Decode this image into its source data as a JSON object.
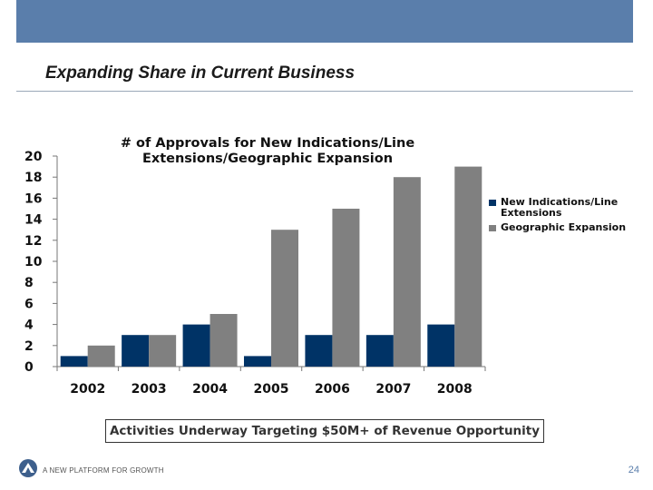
{
  "slide": {
    "title": "Expanding Share in Current Business",
    "callout": "Activities Underway Targeting $50M+ of Revenue Opportunity",
    "footer": "A NEW PLATFORM FOR GROWTH",
    "page_number": "24",
    "header_color": "#5a7eab"
  },
  "chart_data": {
    "type": "bar",
    "title": "# of Approvals for New Indications/Line Extensions/Geographic Expansion",
    "title_lines": [
      "# of Approvals for New Indications/Line",
      "Extensions/Geographic Expansion"
    ],
    "categories": [
      "2002",
      "2003",
      "2004",
      "2005",
      "2006",
      "2007",
      "2008"
    ],
    "series": [
      {
        "name": "New Indications/Line Extensions",
        "name_lines": [
          "New Indications/Line",
          "Extensions"
        ],
        "color": "#003366",
        "values": [
          1,
          3,
          4,
          1,
          3,
          3,
          4
        ]
      },
      {
        "name": "Geographic Expansion",
        "name_lines": [
          "Geographic Expansion"
        ],
        "color": "#808080",
        "values": [
          2,
          3,
          5,
          13,
          15,
          18,
          19
        ]
      }
    ],
    "ylim": [
      0,
      20
    ],
    "yticks": [
      0,
      2,
      4,
      6,
      8,
      10,
      12,
      14,
      16,
      18,
      20
    ],
    "grid": false,
    "legend": "right",
    "xlabel": "",
    "ylabel": ""
  }
}
